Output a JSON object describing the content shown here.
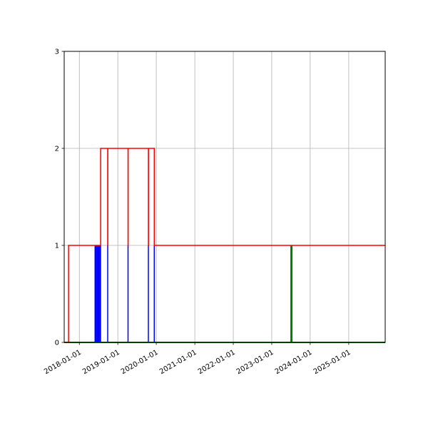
{
  "chart_data": {
    "type": "line",
    "title": "",
    "xlabel": "",
    "ylabel": "",
    "xlim": [
      "2017-08-10",
      "2025-12-13"
    ],
    "ylim": [
      0,
      3
    ],
    "grid": true,
    "yticks": [
      "0",
      "1",
      "2",
      "3"
    ],
    "xticks": [
      "2018-01-01",
      "2019-01-01",
      "2020-01-01",
      "2021-01-01",
      "2022-01-01",
      "2023-01-01",
      "2024-01-01",
      "2025-01-01"
    ],
    "series": [
      {
        "color": "#ff0000",
        "style": "step",
        "points": [
          [
            "2017-08-10",
            0
          ],
          [
            "2017-09-20",
            1
          ],
          [
            "2018-07-22",
            2
          ],
          [
            "2018-09-27",
            1
          ],
          [
            "2018-09-28",
            2
          ],
          [
            "2019-04-08",
            1
          ],
          [
            "2019-04-09",
            2
          ],
          [
            "2019-10-18",
            1
          ],
          [
            "2019-10-19",
            2
          ],
          [
            "2019-12-13",
            1
          ],
          [
            "2025-12-13",
            1
          ]
        ]
      },
      {
        "color": "#0000ff",
        "style": "spikes",
        "height": 1,
        "dates": [
          "2018-05-30",
          "2018-06-08",
          "2018-06-17",
          "2018-06-26",
          "2018-07-05",
          "2018-07-14",
          "2018-07-21",
          "2018-09-27",
          "2019-04-08",
          "2019-10-18",
          "2019-12-13"
        ]
      },
      {
        "color": "#008000",
        "style": "spikes",
        "height": 1,
        "baseline": true,
        "dates": [
          "2023-07-07"
        ]
      }
    ]
  }
}
